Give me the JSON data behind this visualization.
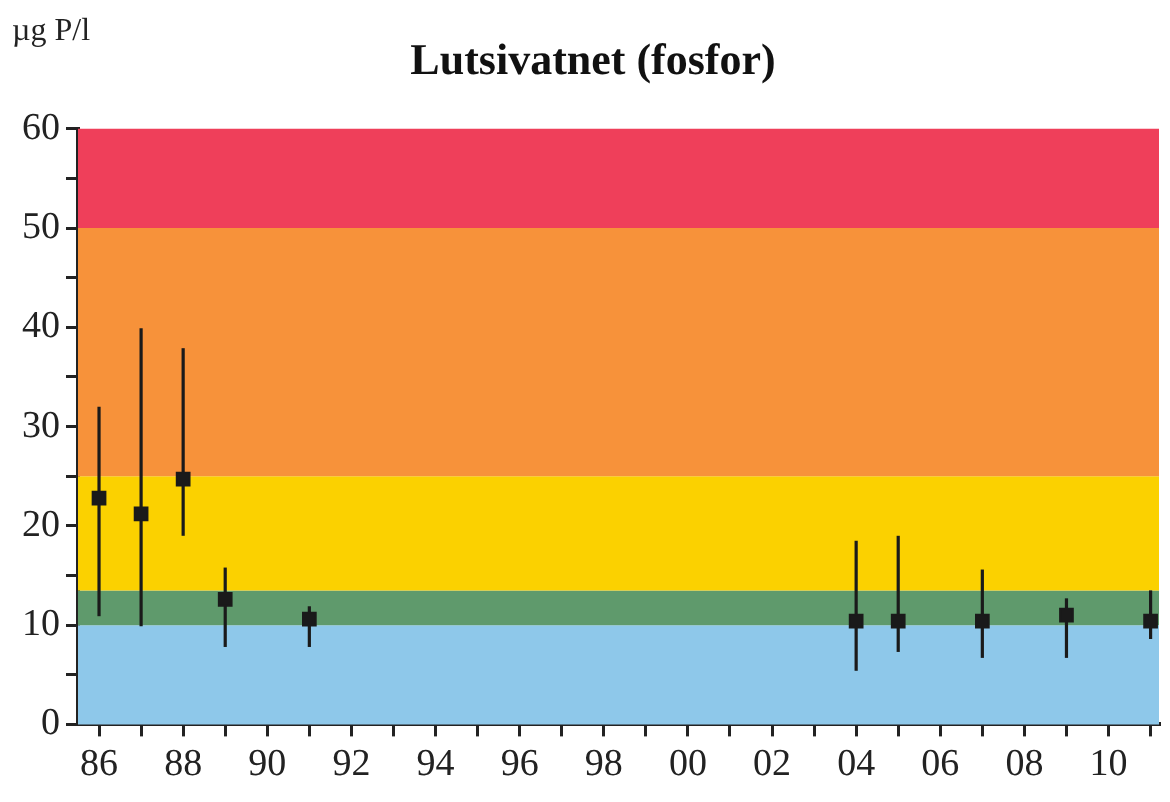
{
  "chart_data": {
    "type": "scatter",
    "title": "Lutsivatnet (fosfor)",
    "ylabel": "µg P/l",
    "x": [
      1986,
      1987,
      1988,
      1989,
      1991,
      2004,
      2005,
      2007,
      2009,
      2011
    ],
    "series": [
      {
        "color": "#1a1a1a",
        "values": [
          22.8,
          21.2,
          24.7,
          12.6,
          10.6,
          10.4,
          10.4,
          10.4,
          11.0,
          10.4
        ],
        "errors": [
          [
            10.9,
            32
          ],
          [
            9.9,
            39.9
          ],
          [
            19,
            37.9
          ],
          [
            7.8,
            15.8
          ],
          [
            7.8,
            11.9
          ],
          [
            5.4,
            18.5
          ],
          [
            7.3,
            19
          ],
          [
            6.7,
            15.6
          ],
          [
            6.7,
            12.7
          ],
          [
            8.6,
            13.5
          ]
        ]
      }
    ],
    "xlim": [
      1985.5,
      2011.2
    ],
    "xticks": [
      {
        "value": 1986,
        "label": "86"
      },
      {
        "value": 1987,
        "label": null
      },
      {
        "value": 1988,
        "label": "88"
      },
      {
        "value": 1989,
        "label": null
      },
      {
        "value": 1990,
        "label": "90"
      },
      {
        "value": 1991,
        "label": null
      },
      {
        "value": 1992,
        "label": "92"
      },
      {
        "value": 1993,
        "label": null
      },
      {
        "value": 1994,
        "label": "94"
      },
      {
        "value": 1995,
        "label": null
      },
      {
        "value": 1996,
        "label": "96"
      },
      {
        "value": 1997,
        "label": null
      },
      {
        "value": 1998,
        "label": "98"
      },
      {
        "value": 1999,
        "label": null
      },
      {
        "value": 2000,
        "label": "00"
      },
      {
        "value": 2001,
        "label": null
      },
      {
        "value": 2002,
        "label": "02"
      },
      {
        "value": 2003,
        "label": null
      },
      {
        "value": 2004,
        "label": "04"
      },
      {
        "value": 2005,
        "label": null
      },
      {
        "value": 2006,
        "label": "06"
      },
      {
        "value": 2007,
        "label": null
      },
      {
        "value": 2008,
        "label": "08"
      },
      {
        "value": 2009,
        "label": null
      },
      {
        "value": 2010,
        "label": "10"
      },
      {
        "value": 2011,
        "label": null
      }
    ],
    "ylim": [
      0,
      60
    ],
    "yticks": [
      0,
      {
        "value": 5,
        "label": null
      },
      10,
      {
        "value": 15,
        "label": null
      },
      20,
      {
        "value": 25,
        "label": null
      },
      30,
      {
        "value": 35,
        "label": null
      },
      40,
      {
        "value": 45,
        "label": null
      },
      50,
      {
        "value": 55,
        "label": null
      },
      60
    ],
    "bands": [
      {
        "axis": "y",
        "from": 0,
        "to": 10,
        "color": "#8ec8ea"
      },
      {
        "axis": "y",
        "from": 10,
        "to": 13.5,
        "color": "#5f9a6c"
      },
      {
        "axis": "y",
        "from": 13.5,
        "to": 25,
        "color": "#fbd100"
      },
      {
        "axis": "y",
        "from": 25,
        "to": 50,
        "color": "#f7923a"
      },
      {
        "axis": "y",
        "from": 50,
        "to": 60,
        "color": "#ef3f5a"
      }
    ],
    "grid": false,
    "legend": false,
    "marker": "square"
  }
}
